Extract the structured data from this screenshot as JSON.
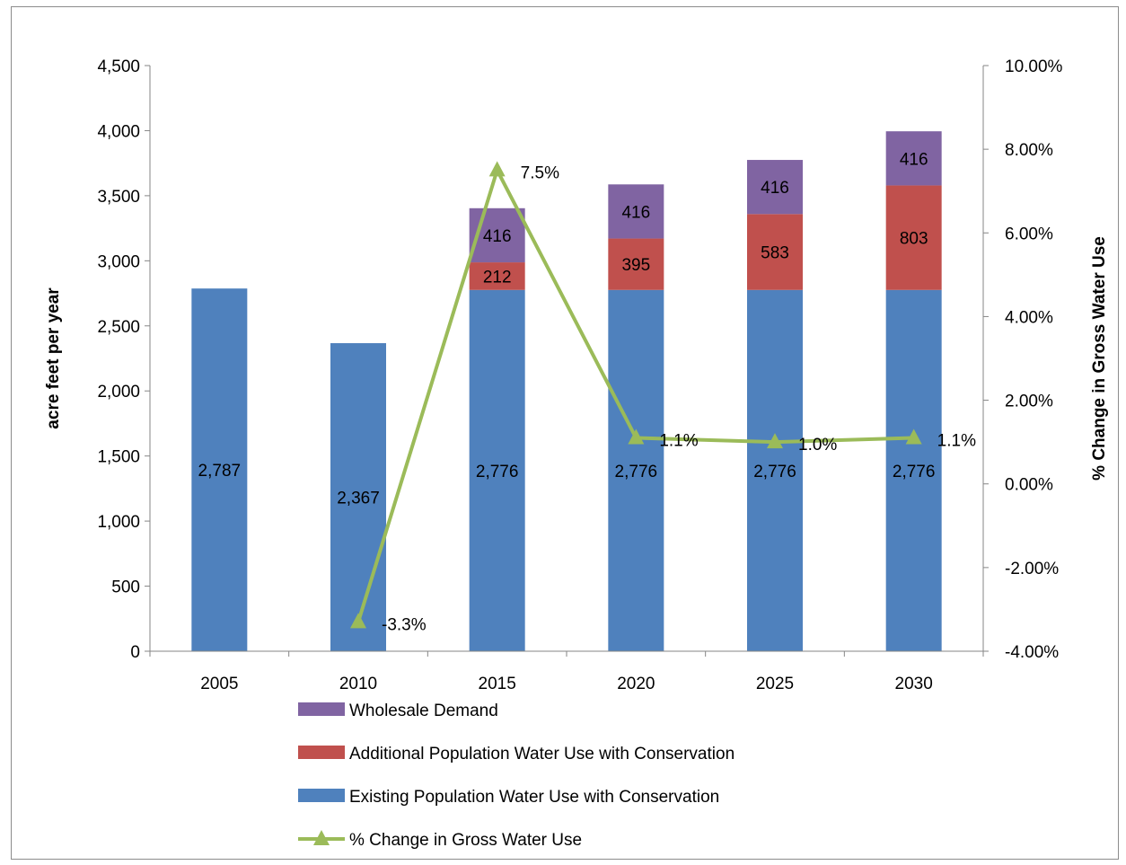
{
  "chart_data": {
    "type": "bar",
    "stacked": true,
    "categories": [
      "2005",
      "2010",
      "2015",
      "2020",
      "2025",
      "2030"
    ],
    "ylabel": "acre feet per year",
    "y2label": "% Change in Gross Water Use",
    "ylim": [
      0,
      4500
    ],
    "y2lim": [
      -4.0,
      10.0
    ],
    "yticks": [
      "0",
      "500",
      "1,000",
      "1,500",
      "2,000",
      "2,500",
      "3,000",
      "3,500",
      "4,000",
      "4,500"
    ],
    "y2ticks": [
      "-4.00%",
      "-2.00%",
      "0.00%",
      "2.00%",
      "4.00%",
      "6.00%",
      "8.00%",
      "10.00%"
    ],
    "series": [
      {
        "name": "Existing Population Water Use with Conservation",
        "kind": "bar",
        "axis": "left",
        "color": "#4f81bd",
        "values": [
          2787,
          2367,
          2776,
          2776,
          2776,
          2776
        ],
        "labels": [
          "2,787",
          "2,367",
          "2,776",
          "2,776",
          "2,776",
          "2,776"
        ]
      },
      {
        "name": "Additional Population Water Use with Conservation",
        "kind": "bar",
        "axis": "left",
        "color": "#c0504d",
        "values": [
          null,
          null,
          212,
          395,
          583,
          803
        ],
        "labels": [
          "",
          "",
          "212",
          "395",
          "583",
          "803"
        ]
      },
      {
        "name": "Wholesale Demand",
        "kind": "bar",
        "axis": "left",
        "color": "#8064a2",
        "values": [
          null,
          null,
          416,
          416,
          416,
          416
        ],
        "labels": [
          "",
          "",
          "416",
          "416",
          "416",
          "416"
        ]
      },
      {
        "name": "% Change in Gross Water Use",
        "kind": "line",
        "axis": "right",
        "color": "#9bbb59",
        "marker": "triangle",
        "values": [
          null,
          -3.3,
          7.5,
          1.1,
          1.0,
          1.1
        ],
        "labels": [
          "",
          "-3.3%",
          "7.5%",
          "1.1%",
          "1.0%",
          "1.1%"
        ]
      }
    ],
    "legend": {
      "position": "bottom",
      "order": [
        "Wholesale Demand",
        "Additional Population Water Use with Conservation",
        "Existing Population Water Use with Conservation",
        "% Change in Gross Water Use"
      ]
    },
    "grid": false
  }
}
